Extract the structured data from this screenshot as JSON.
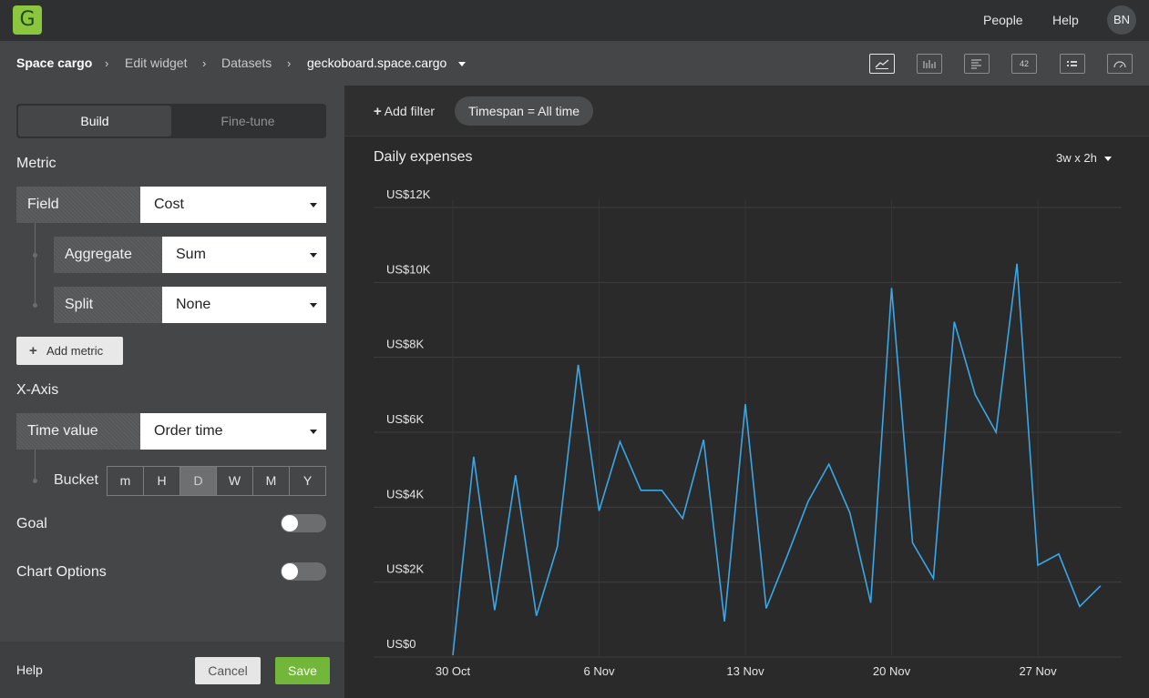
{
  "app": {
    "logo_letter": "G"
  },
  "topnav": {
    "people": "People",
    "help": "Help",
    "avatar": "BN"
  },
  "breadcrumb": {
    "items": [
      "Space cargo",
      "Edit widget",
      "Datasets",
      "geckoboard.space.cargo"
    ],
    "separator": "›"
  },
  "viz_types": [
    {
      "name": "line-chart",
      "active": true,
      "label": ""
    },
    {
      "name": "column-chart",
      "active": false,
      "label": ""
    },
    {
      "name": "text",
      "active": false,
      "label": ""
    },
    {
      "name": "number",
      "active": false,
      "label": "42"
    },
    {
      "name": "leaderboard",
      "active": false,
      "label": ""
    },
    {
      "name": "gauge",
      "active": false,
      "label": ""
    }
  ],
  "tabs": {
    "build": "Build",
    "finetune": "Fine-tune"
  },
  "metric": {
    "title": "Metric",
    "field_label": "Field",
    "field_value": "Cost",
    "aggregate_label": "Aggregate",
    "aggregate_value": "Sum",
    "split_label": "Split",
    "split_value": "None",
    "add_metric": "Add metric"
  },
  "xaxis": {
    "title": "X-Axis",
    "time_label": "Time value",
    "time_value": "Order time",
    "bucket_label": "Bucket",
    "buckets": [
      "m",
      "H",
      "D",
      "W",
      "M",
      "Y"
    ],
    "active_bucket": "D"
  },
  "goal": {
    "label": "Goal",
    "enabled": false
  },
  "chart_options": {
    "label": "Chart Options",
    "enabled": false
  },
  "footer": {
    "help": "Help",
    "cancel": "Cancel",
    "save": "Save"
  },
  "filters": {
    "add_filter": "Add filter",
    "chip": "Timespan = All time"
  },
  "widget": {
    "title": "Daily expenses",
    "size": "3w x 2h"
  },
  "colors": {
    "accent_green": "#8cc63e",
    "save_green": "#72b73a",
    "line_blue": "#3aa7e8"
  },
  "chart_data": {
    "type": "line",
    "title": "Daily expenses",
    "y_ticks": [
      "US$0",
      "US$2K",
      "US$4K",
      "US$6K",
      "US$8K",
      "US$10K",
      "US$12K"
    ],
    "ylim": [
      0,
      12000
    ],
    "x_ticks": [
      {
        "label": "30 Oct",
        "day": 0
      },
      {
        "label": "6 Nov",
        "day": 7
      },
      {
        "label": "13 Nov",
        "day": 14
      },
      {
        "label": "20 Nov",
        "day": 21
      },
      {
        "label": "27 Nov",
        "day": 28
      }
    ],
    "series": [
      {
        "values": [
          50,
          5350,
          1250,
          4850,
          1100,
          2950,
          7800,
          3900,
          5750,
          4450,
          4450,
          3700,
          5800,
          950,
          6750,
          1300,
          2700,
          4150,
          5150,
          3850,
          1450,
          9850,
          3050,
          2100,
          8950,
          7000,
          6000,
          10500,
          2450,
          2750,
          1350,
          1900
        ]
      }
    ],
    "grid": true
  }
}
